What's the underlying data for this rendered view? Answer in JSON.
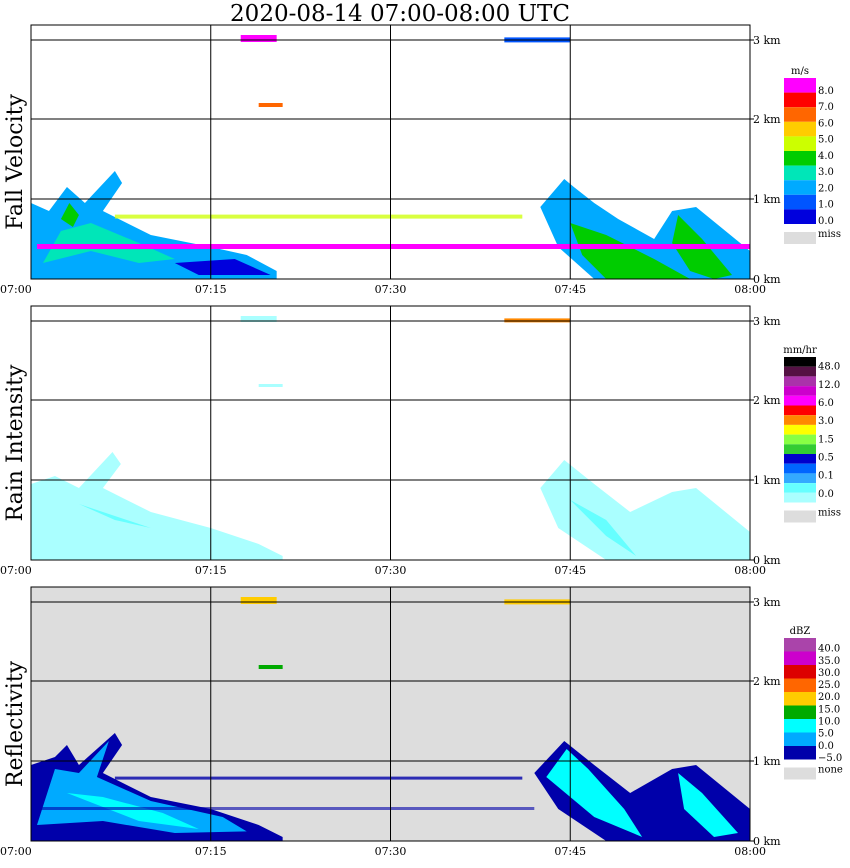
{
  "title": "2020-08-14   07:00-08:00 UTC",
  "x_ticks": [
    "07:00",
    "07:15",
    "07:30",
    "07:45",
    "08:00"
  ],
  "y_ticks": [
    "0 km",
    "1 km",
    "2 km",
    "3 km"
  ],
  "chart_data": [
    {
      "type": "heatmap",
      "title": "Fall Velocity",
      "xlim": [
        "07:00",
        "08:00"
      ],
      "ylim": [
        0,
        3.2
      ],
      "unit": "m/s",
      "legend_labels": [
        "8.0",
        "7.0",
        "6.0",
        "5.0",
        "4.0",
        "3.0",
        "2.0",
        "1.0",
        "0.0"
      ],
      "legend_colors": [
        "#ff00ff",
        "#ff0000",
        "#ff6600",
        "#ffcc00",
        "#ccff00",
        "#00cc00",
        "#00e6b8",
        "#00aaff",
        "#0055ff",
        "#0000dd"
      ],
      "missing_label": "miss",
      "missing_color": "#dddddd"
    },
    {
      "type": "heatmap",
      "title": "Rain Intensity",
      "xlim": [
        "07:00",
        "08:00"
      ],
      "ylim": [
        0,
        3.2
      ],
      "unit": "mm/hr",
      "legend_labels": [
        "48.0",
        "12.0",
        "6.0",
        "3.0",
        "1.5",
        "0.5",
        "0.1",
        "0.0"
      ],
      "legend_colors": [
        "#000000",
        "#551144",
        "#aa33aa",
        "#cc00cc",
        "#ff00ff",
        "#ff0000",
        "#ff8800",
        "#ffff00",
        "#88ff44",
        "#33cc33",
        "#0000cc",
        "#0066ff",
        "#33aaff",
        "#66ffff",
        "#aaffff"
      ],
      "missing_label": "miss",
      "missing_color": "#dddddd"
    },
    {
      "type": "heatmap",
      "title": "Reflectivity",
      "xlim": [
        "07:00",
        "08:00"
      ],
      "ylim": [
        0,
        3.2
      ],
      "unit": "dBZ",
      "legend_labels": [
        "40.0",
        "35.0",
        "30.0",
        "25.0",
        "20.0",
        "15.0",
        "10.0",
        "5.0",
        "0.0",
        "−5.0"
      ],
      "legend_colors": [
        "#aa44aa",
        "#cc00cc",
        "#dd0000",
        "#ff6600",
        "#ffcc00",
        "#00aa00",
        "#00ffff",
        "#00aaff",
        "#0000aa"
      ],
      "missing_label": "none",
      "missing_color": "#dddddd"
    }
  ]
}
